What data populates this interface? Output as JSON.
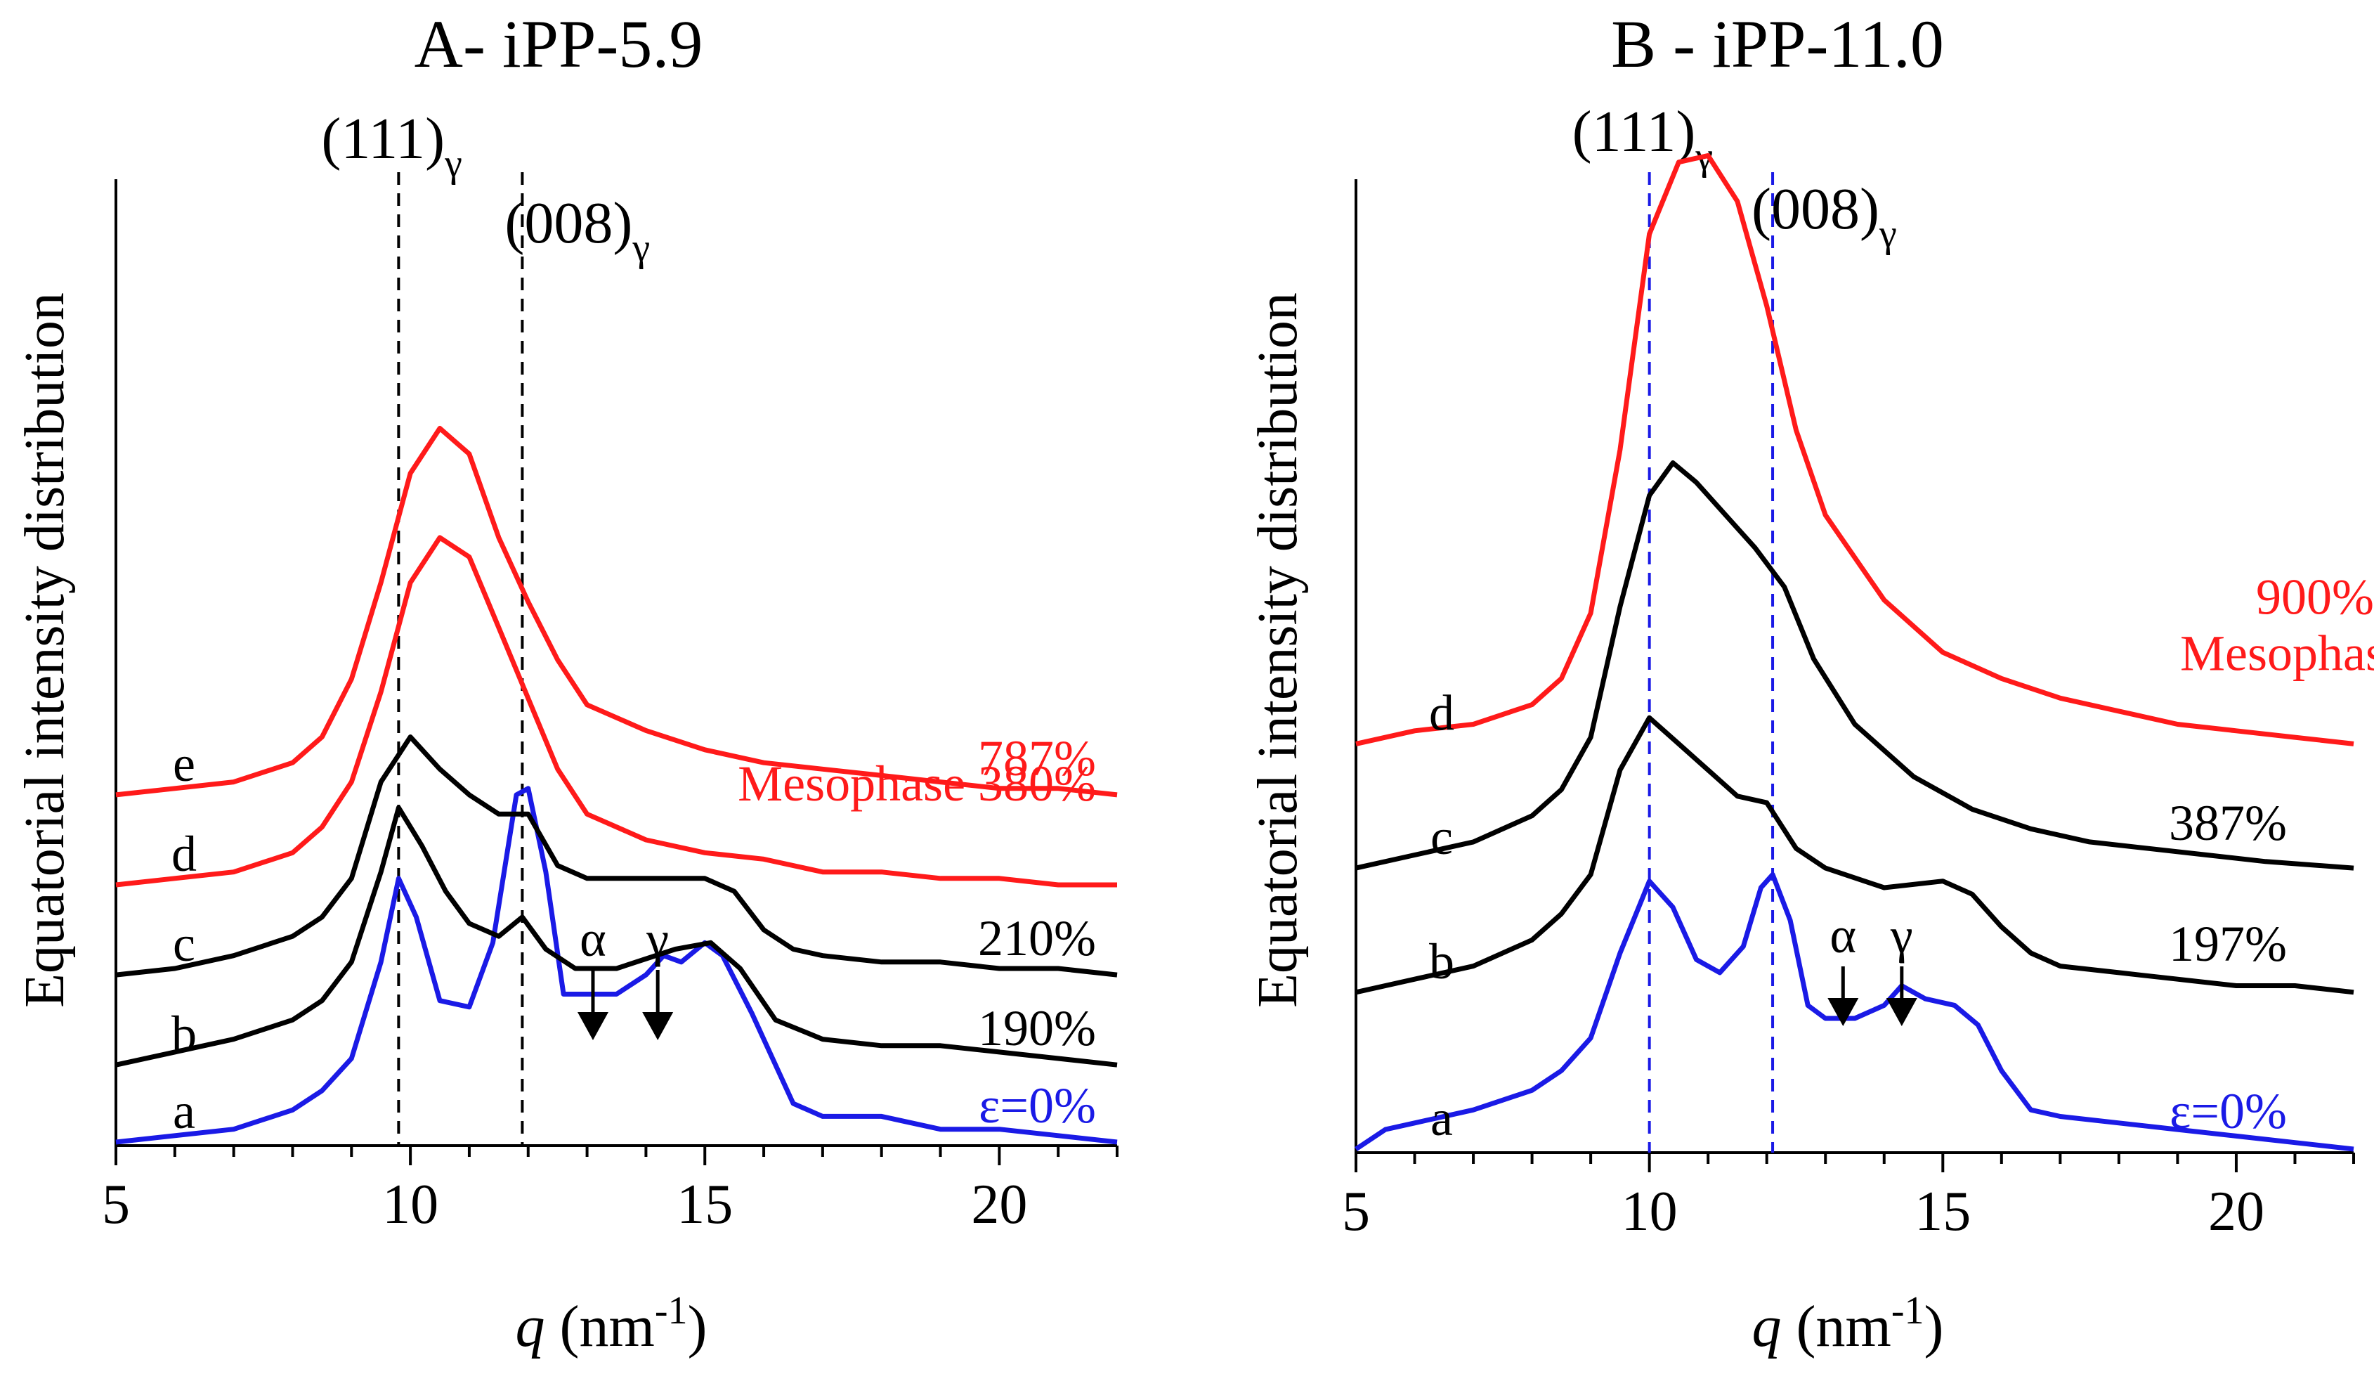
{
  "colors": {
    "mesophase": "#ff1a1a",
    "crystal": "#000000",
    "unstretched": "#1a1ae6",
    "axis": "#000000"
  },
  "chart_data": [
    {
      "type": "line",
      "panel": "A",
      "title": "A- iPP-5.9",
      "ylabel": "Equatorial intensity distribution",
      "xlabel": {
        "italic": "q",
        "rest": " (nm",
        "sup": "-1",
        "close": ")"
      },
      "xlim": [
        5,
        22
      ],
      "xticks": [
        5,
        10,
        15,
        20
      ],
      "ylim": [
        0,
        1
      ],
      "yticks": false,
      "reference_lines": [
        {
          "x": 9.8,
          "label": "(111)",
          "sub": "γ",
          "color": "#000000"
        },
        {
          "x": 11.9,
          "label": "(008)",
          "sub": "γ",
          "color": "#000000"
        }
      ],
      "arrows": [
        {
          "x": 13.1,
          "label": "α"
        },
        {
          "x": 14.2,
          "label": "γ"
        }
      ],
      "series": [
        {
          "name": "a",
          "strain": "ε=0%",
          "color": "#1a1ae6",
          "offset": 0.0,
          "x": [
            5,
            6,
            7,
            8,
            8.5,
            9,
            9.5,
            9.8,
            10.1,
            10.5,
            11,
            11.4,
            11.8,
            12,
            12.3,
            12.6,
            13,
            13.5,
            14,
            14.3,
            14.6,
            15,
            15.3,
            15.8,
            16.5,
            17,
            18,
            19,
            20,
            21,
            22
          ],
          "y": [
            0.0,
            0.01,
            0.02,
            0.05,
            0.08,
            0.13,
            0.28,
            0.41,
            0.35,
            0.22,
            0.21,
            0.31,
            0.54,
            0.55,
            0.42,
            0.23,
            0.23,
            0.23,
            0.26,
            0.29,
            0.28,
            0.31,
            0.29,
            0.2,
            0.06,
            0.04,
            0.04,
            0.02,
            0.02,
            0.01,
            0.0
          ]
        },
        {
          "name": "b",
          "strain": "190%",
          "color": "#000000",
          "offset": 0.12,
          "x": [
            5,
            6,
            7,
            8,
            8.5,
            9,
            9.5,
            9.8,
            10.2,
            10.6,
            11,
            11.5,
            11.9,
            12.3,
            12.8,
            13.5,
            14.5,
            15.1,
            15.6,
            16.2,
            17,
            18,
            19,
            20,
            21,
            22
          ],
          "y": [
            0.0,
            0.02,
            0.04,
            0.07,
            0.1,
            0.16,
            0.3,
            0.4,
            0.34,
            0.27,
            0.22,
            0.2,
            0.23,
            0.18,
            0.15,
            0.15,
            0.18,
            0.19,
            0.15,
            0.07,
            0.04,
            0.03,
            0.03,
            0.02,
            0.01,
            0.0
          ]
        },
        {
          "name": "c",
          "strain": "210%",
          "color": "#000000",
          "offset": 0.26,
          "x": [
            5,
            6,
            7,
            8,
            8.5,
            9,
            9.5,
            10,
            10.5,
            11,
            11.5,
            12,
            12.5,
            13,
            14,
            15,
            15.5,
            16,
            16.5,
            17,
            18,
            19,
            20,
            21,
            22
          ],
          "y": [
            0.0,
            0.01,
            0.03,
            0.06,
            0.09,
            0.15,
            0.3,
            0.37,
            0.32,
            0.28,
            0.25,
            0.25,
            0.17,
            0.15,
            0.15,
            0.15,
            0.13,
            0.07,
            0.04,
            0.03,
            0.02,
            0.02,
            0.01,
            0.01,
            0.0
          ]
        },
        {
          "name": "d",
          "strain": "Mesophase 380%",
          "color": "#ff1a1a",
          "offset": 0.4,
          "x": [
            5,
            6,
            7,
            8,
            8.5,
            9,
            9.5,
            10,
            10.5,
            11,
            11.5,
            12,
            12.5,
            13,
            14,
            15,
            16,
            17,
            18,
            19,
            20,
            21,
            22
          ],
          "y": [
            0.0,
            0.01,
            0.02,
            0.05,
            0.09,
            0.16,
            0.3,
            0.47,
            0.54,
            0.51,
            0.4,
            0.29,
            0.18,
            0.11,
            0.07,
            0.05,
            0.04,
            0.02,
            0.02,
            0.01,
            0.01,
            0.0,
            0.0
          ]
        },
        {
          "name": "e",
          "strain": "787%",
          "color": "#ff1a1a",
          "offset": 0.54,
          "x": [
            5,
            6,
            7,
            8,
            8.5,
            9,
            9.5,
            10,
            10.5,
            11,
            11.5,
            12,
            12.5,
            13,
            14,
            15,
            16,
            17,
            18,
            19,
            20,
            21,
            22
          ],
          "y": [
            0.0,
            0.01,
            0.02,
            0.05,
            0.09,
            0.18,
            0.33,
            0.5,
            0.57,
            0.53,
            0.4,
            0.3,
            0.21,
            0.14,
            0.1,
            0.07,
            0.05,
            0.04,
            0.03,
            0.02,
            0.01,
            0.01,
            0.0
          ]
        }
      ]
    },
    {
      "type": "line",
      "panel": "B",
      "title": "B - iPP-11.0",
      "ylabel": "Equatorial intensity distribution",
      "xlabel": {
        "italic": "q",
        "rest": " (nm",
        "sup": "-1",
        "close": ")"
      },
      "xlim": [
        5,
        22
      ],
      "xticks": [
        5,
        10,
        15,
        20
      ],
      "ylim": [
        0,
        1
      ],
      "yticks": false,
      "reference_lines": [
        {
          "x": 10.0,
          "label": "(111)",
          "sub": "γ",
          "color": "#1a1ae6"
        },
        {
          "x": 12.1,
          "label": "(008)",
          "sub": "γ",
          "color": "#1a1ae6"
        }
      ],
      "arrows": [
        {
          "x": 13.3,
          "label": "α"
        },
        {
          "x": 14.3,
          "label": "γ"
        }
      ],
      "series": [
        {
          "name": "a",
          "strain": "ε=0%",
          "color": "#1a1ae6",
          "offset": 0.0,
          "x": [
            5,
            5.5,
            6,
            7,
            8,
            8.5,
            9,
            9.5,
            10,
            10.4,
            10.8,
            11.2,
            11.6,
            11.9,
            12.1,
            12.4,
            12.7,
            13,
            13.5,
            14,
            14.3,
            14.7,
            15.2,
            15.6,
            16,
            16.5,
            17,
            18,
            19,
            20,
            21,
            22
          ],
          "y": [
            0.0,
            0.03,
            0.04,
            0.06,
            0.09,
            0.12,
            0.17,
            0.3,
            0.41,
            0.37,
            0.29,
            0.27,
            0.31,
            0.4,
            0.42,
            0.35,
            0.22,
            0.2,
            0.2,
            0.22,
            0.25,
            0.23,
            0.22,
            0.19,
            0.12,
            0.06,
            0.05,
            0.04,
            0.03,
            0.02,
            0.01,
            0.0
          ]
        },
        {
          "name": "b",
          "strain": "197%",
          "color": "#000000",
          "offset": 0.24,
          "x": [
            5,
            6,
            7,
            8,
            8.5,
            9,
            9.5,
            10,
            10.5,
            11,
            11.5,
            12,
            12.5,
            13,
            14,
            15,
            15.5,
            16,
            16.5,
            17,
            18,
            19,
            20,
            21,
            22
          ],
          "y": [
            0.0,
            0.02,
            0.04,
            0.08,
            0.12,
            0.18,
            0.34,
            0.42,
            0.38,
            0.34,
            0.3,
            0.29,
            0.22,
            0.19,
            0.16,
            0.17,
            0.15,
            0.1,
            0.06,
            0.04,
            0.03,
            0.02,
            0.01,
            0.01,
            0.0
          ]
        },
        {
          "name": "c",
          "strain": "387%",
          "color": "#000000",
          "offset": 0.43,
          "x": [
            5,
            6,
            7,
            8,
            8.5,
            9,
            9.5,
            10,
            10.4,
            10.8,
            11.3,
            11.8,
            12.3,
            12.8,
            13.5,
            14.5,
            15.5,
            16.5,
            17.5,
            18.5,
            19.5,
            20.5,
            22
          ],
          "y": [
            0.0,
            0.02,
            0.04,
            0.08,
            0.12,
            0.2,
            0.4,
            0.57,
            0.62,
            0.59,
            0.54,
            0.49,
            0.43,
            0.32,
            0.22,
            0.14,
            0.09,
            0.06,
            0.04,
            0.03,
            0.02,
            0.01,
            0.0
          ]
        },
        {
          "name": "d",
          "strain": "900%",
          "strain2": "Mesophase",
          "color": "#ff1a1a",
          "offset": 0.62,
          "x": [
            5,
            6,
            7,
            8,
            8.5,
            9,
            9.5,
            10,
            10.5,
            11,
            11.5,
            12,
            12.5,
            13,
            14,
            15,
            16,
            17,
            18,
            19,
            20,
            21,
            22
          ],
          "y": [
            0.0,
            0.02,
            0.03,
            0.06,
            0.1,
            0.2,
            0.45,
            0.78,
            0.89,
            0.9,
            0.83,
            0.67,
            0.48,
            0.35,
            0.22,
            0.14,
            0.1,
            0.07,
            0.05,
            0.03,
            0.02,
            0.01,
            0.0
          ]
        }
      ]
    }
  ]
}
